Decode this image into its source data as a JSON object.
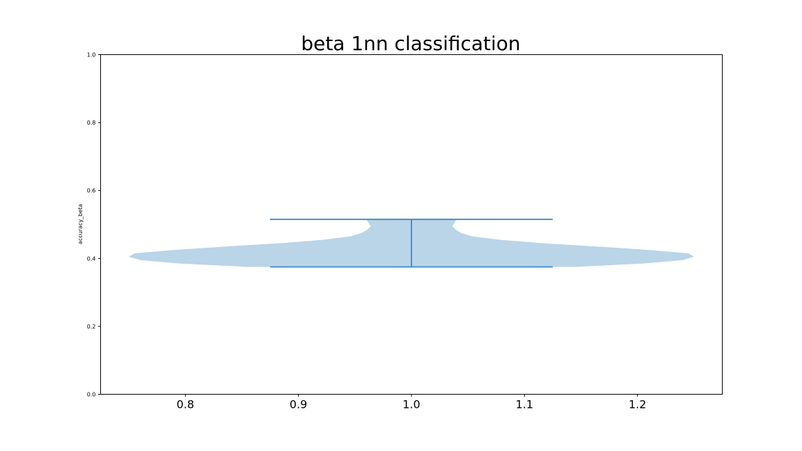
{
  "chart_data": {
    "type": "violin",
    "title": "beta 1nn classification",
    "xlabel": "",
    "ylabel": "accuracy_beta",
    "xlim": [
      0.725,
      1.275
    ],
    "ylim": [
      0.0,
      1.0
    ],
    "x_ticks": [
      "0.8",
      "0.9",
      "1.0",
      "1.1",
      "1.2"
    ],
    "y_ticks": [
      "0.0",
      "0.2",
      "0.4",
      "0.6",
      "0.8",
      "1.0"
    ],
    "grid": false,
    "colors": {
      "body": "#bad4e8",
      "lines": "#3b87c5",
      "axes": "#000000"
    },
    "violin": {
      "position": 1.0,
      "min": 0.375,
      "max": 0.515,
      "density_profile": [
        {
          "y": 0.375,
          "half_width": 0.145
        },
        {
          "y": 0.385,
          "half_width": 0.205
        },
        {
          "y": 0.395,
          "half_width": 0.24
        },
        {
          "y": 0.405,
          "half_width": 0.25
        },
        {
          "y": 0.415,
          "half_width": 0.245
        },
        {
          "y": 0.425,
          "half_width": 0.21
        },
        {
          "y": 0.435,
          "half_width": 0.165
        },
        {
          "y": 0.445,
          "half_width": 0.115
        },
        {
          "y": 0.455,
          "half_width": 0.078
        },
        {
          "y": 0.465,
          "half_width": 0.054
        },
        {
          "y": 0.475,
          "half_width": 0.044
        },
        {
          "y": 0.485,
          "half_width": 0.039
        },
        {
          "y": 0.495,
          "half_width": 0.036
        },
        {
          "y": 0.505,
          "half_width": 0.038
        },
        {
          "y": 0.515,
          "half_width": 0.04
        }
      ],
      "cap_half_width": 0.125
    }
  }
}
